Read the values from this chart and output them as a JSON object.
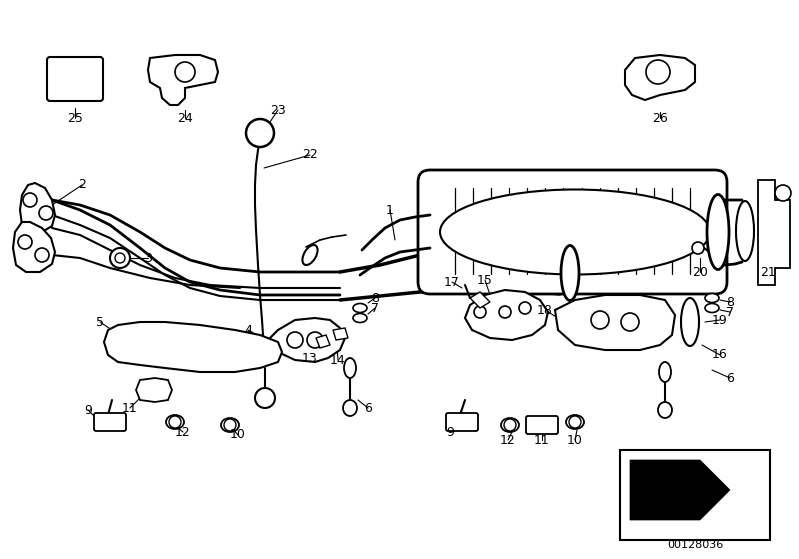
{
  "bg_color": "#FFFFFF",
  "part_number": "00128036",
  "fig_w": 7.99,
  "fig_h": 5.59,
  "dpi": 100
}
